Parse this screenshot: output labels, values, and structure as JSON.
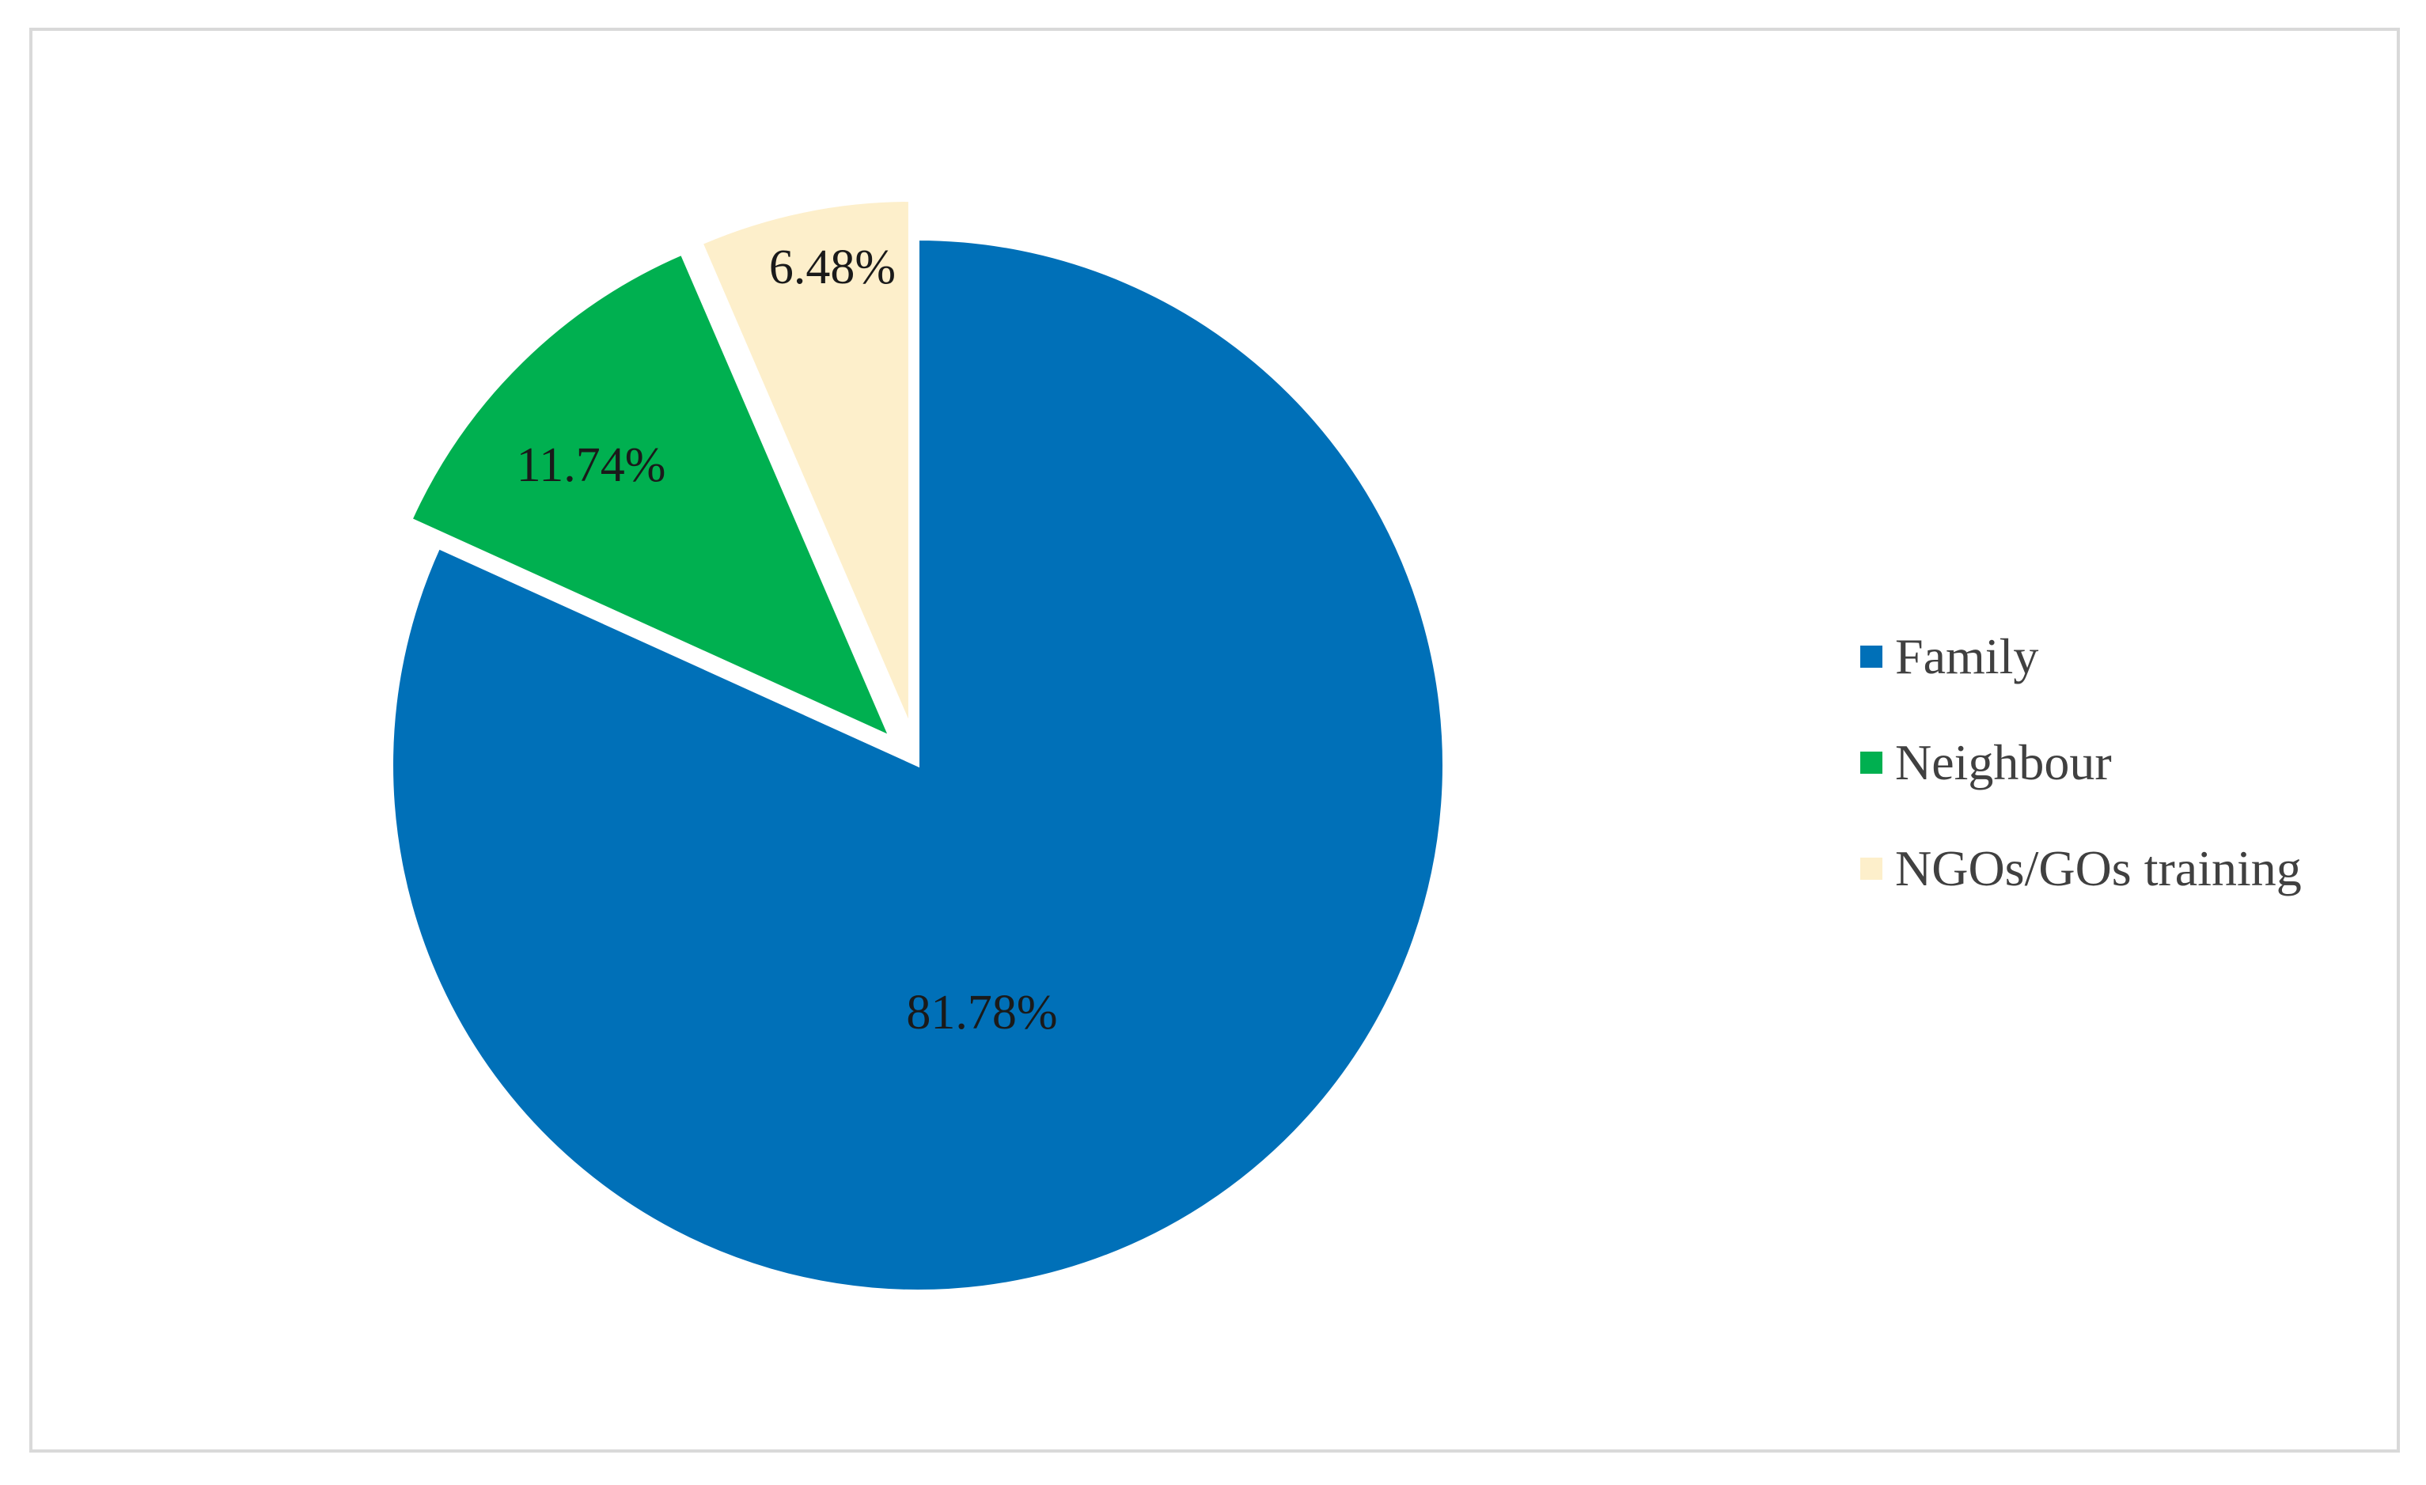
{
  "chart_data": {
    "type": "pie",
    "title": "",
    "series": [
      {
        "name": "Family",
        "value": 81.78,
        "label": "81.78%",
        "color": "#0070b8"
      },
      {
        "name": "Neighbour",
        "value": 11.74,
        "label": "11.74%",
        "color": "#00b050"
      },
      {
        "name": "NGOs/GOs training",
        "value": 6.48,
        "label": "6.48%",
        "color": "#fdefcb"
      }
    ],
    "start_angle_deg": 0,
    "direction": "clockwise",
    "exploded": [
      "Neighbour",
      "NGOs/GOs training"
    ],
    "legend_position": "right"
  },
  "legend": {
    "items": [
      {
        "label": "Family",
        "color": "#0070b8"
      },
      {
        "label": "Neighbour",
        "color": "#00b050"
      },
      {
        "label": "NGOs/GOs training",
        "color": "#fdefcb"
      }
    ]
  }
}
